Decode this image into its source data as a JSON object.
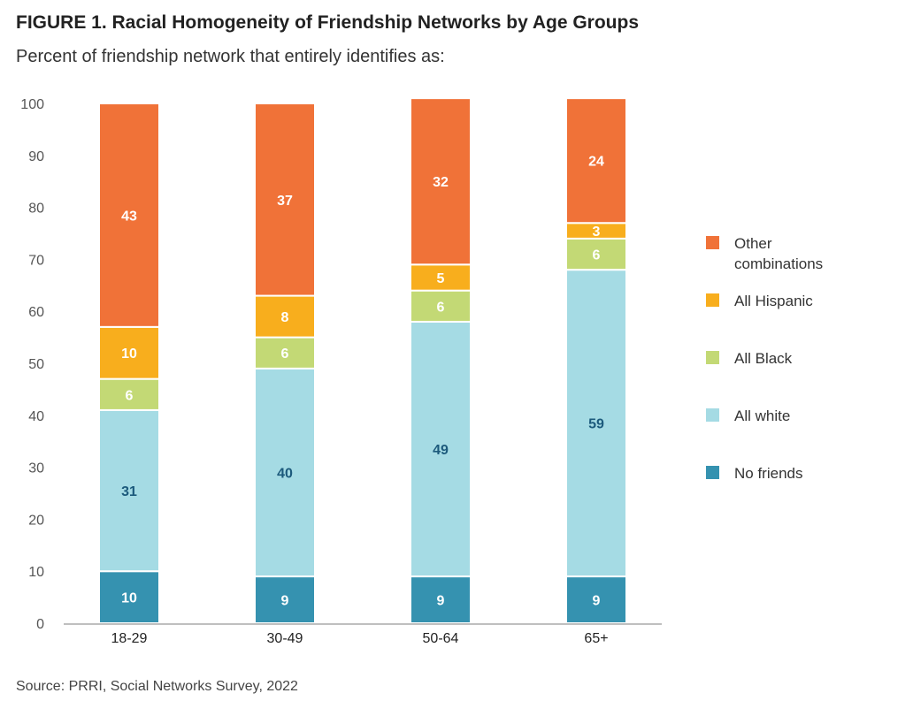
{
  "figure": {
    "title": "FIGURE 1.  Racial Homogeneity of Friendship Networks by Age Groups",
    "subtitle": "Percent of friendship network that entirely identifies as:",
    "source": "Source: PRRI, Social Networks Survey, 2022"
  },
  "chart_data": {
    "type": "bar",
    "stacked": true,
    "title": "FIGURE 1.  Racial Homogeneity of Friendship Networks by Age Groups",
    "subtitle": "Percent of friendship network that entirely identifies as:",
    "categories": [
      "18-29",
      "30-49",
      "50-64",
      "65+"
    ],
    "ylim": [
      0,
      100
    ],
    "yticks": [
      0,
      10,
      20,
      30,
      40,
      50,
      60,
      70,
      80,
      90,
      100
    ],
    "grid": false,
    "legend_position": "right",
    "series": [
      {
        "name": "No friends",
        "color": "#3592b0",
        "label_color": "#ffffff",
        "values": [
          10,
          9,
          9,
          9
        ]
      },
      {
        "name": "All white",
        "color": "#a5dbe4",
        "label_color": "#1c5a7c",
        "values": [
          31,
          40,
          49,
          59
        ]
      },
      {
        "name": "All Black",
        "color": "#c3d975",
        "label_color": "#ffffff",
        "values": [
          6,
          6,
          6,
          6
        ]
      },
      {
        "name": "All Hispanic",
        "color": "#f8ae1d",
        "label_color": "#ffffff",
        "values": [
          10,
          8,
          5,
          3
        ]
      },
      {
        "name": "Other combinations",
        "color": "#f07238",
        "label_color": "#ffffff",
        "values": [
          43,
          37,
          32,
          24
        ]
      }
    ],
    "legend_order": [
      "Other combinations",
      "All Hispanic",
      "All Black",
      "All white",
      "No friends"
    ],
    "legend_lines": {
      "Other combinations": [
        "Other",
        "combinations"
      ]
    }
  }
}
